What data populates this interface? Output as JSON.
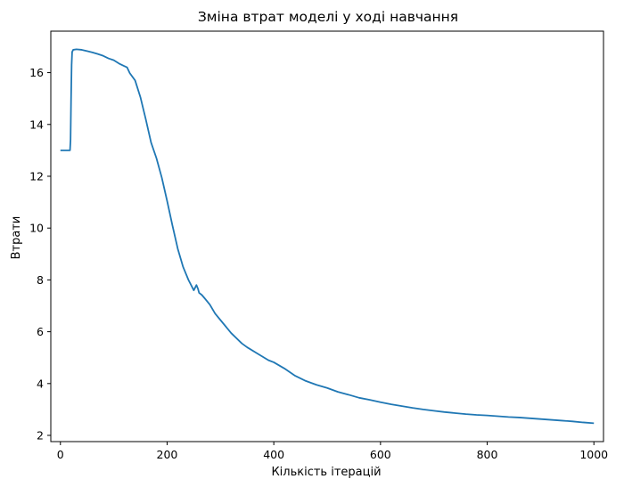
{
  "chart_data": {
    "type": "line",
    "title": "Зміна втрат моделі у ході навчання",
    "xlabel": "Кількість ітерацій",
    "ylabel": "Втрати",
    "xlim": [
      -18,
      1018
    ],
    "ylim": [
      1.76,
      17.6
    ],
    "xticks": [
      0,
      200,
      400,
      600,
      800,
      1000
    ],
    "yticks": [
      2,
      4,
      6,
      8,
      10,
      12,
      14,
      16
    ],
    "grid": false,
    "color": "#1f77b4",
    "series": [
      {
        "x": [
          0,
          18,
          19,
          20,
          21,
          22,
          24,
          30,
          40,
          50,
          60,
          70,
          80,
          90,
          100,
          110,
          120,
          125,
          130,
          140,
          150,
          160,
          170,
          180,
          190,
          200,
          210,
          220,
          230,
          240,
          250,
          255,
          258,
          260,
          265,
          270,
          280,
          290,
          300,
          320,
          340,
          350,
          370,
          390,
          400,
          420,
          440,
          460,
          480,
          500,
          520,
          540,
          560,
          580,
          600,
          620,
          640,
          660,
          680,
          700,
          720,
          740,
          760,
          780,
          800,
          820,
          840,
          860,
          880,
          900,
          920,
          940,
          960,
          980,
          1000
        ],
        "y": [
          13.0,
          13.0,
          13.4,
          15.0,
          16.3,
          16.8,
          16.88,
          16.9,
          16.88,
          16.83,
          16.78,
          16.72,
          16.65,
          16.55,
          16.48,
          16.35,
          16.25,
          16.2,
          15.98,
          15.7,
          15.05,
          14.2,
          13.3,
          12.7,
          11.95,
          11.05,
          10.1,
          9.2,
          8.5,
          8.0,
          7.6,
          7.8,
          7.65,
          7.5,
          7.42,
          7.3,
          7.05,
          6.7,
          6.45,
          5.95,
          5.55,
          5.4,
          5.15,
          4.9,
          4.82,
          4.58,
          4.3,
          4.1,
          3.95,
          3.83,
          3.68,
          3.57,
          3.45,
          3.37,
          3.28,
          3.2,
          3.13,
          3.06,
          3.0,
          2.95,
          2.9,
          2.86,
          2.82,
          2.79,
          2.77,
          2.74,
          2.71,
          2.69,
          2.66,
          2.63,
          2.6,
          2.57,
          2.54,
          2.5,
          2.47
        ]
      }
    ]
  }
}
